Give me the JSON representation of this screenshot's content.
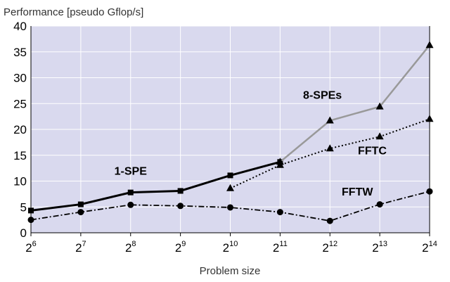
{
  "chart_data": {
    "type": "line",
    "title": "",
    "ylabel": "Performance [pseudo Gflop/s]",
    "xlabel": "Problem size",
    "ylim": [
      0,
      40
    ],
    "yticks": [
      0,
      5,
      10,
      15,
      20,
      25,
      30,
      35,
      40
    ],
    "x_base": "2",
    "x": [
      6,
      7,
      8,
      9,
      10,
      11,
      12,
      13,
      14
    ],
    "grid": true,
    "legend": "inline labels",
    "colors": {
      "plot_bg": "#d9d9ee",
      "grid": "#ffffff",
      "dark": "#000000",
      "gray": "#999999"
    },
    "series": [
      {
        "name": "1-SPE",
        "x": [
          6,
          7,
          8,
          9,
          10,
          11
        ],
        "values": [
          4.3,
          5.5,
          7.8,
          8.1,
          11.1,
          13.7
        ],
        "style": "solid-thick",
        "marker": "square",
        "color": "#000000"
      },
      {
        "name": "8-SPEs",
        "x": [
          11,
          12,
          13,
          14
        ],
        "values": [
          13.7,
          21.7,
          24.4,
          36.3
        ],
        "style": "solid",
        "marker": "triangle",
        "color": "#999999"
      },
      {
        "name": "FFTC",
        "x": [
          10,
          11,
          12,
          13,
          14
        ],
        "values": [
          8.6,
          13.1,
          16.3,
          18.6,
          22.0
        ],
        "style": "dotted",
        "marker": "triangle",
        "color": "#000000"
      },
      {
        "name": "FFTW",
        "x": [
          6,
          7,
          8,
          9,
          10,
          11,
          12,
          13,
          14
        ],
        "values": [
          2.5,
          4.0,
          5.4,
          5.2,
          4.9,
          4.0,
          2.3,
          5.5,
          8.0
        ],
        "style": "dashdot",
        "marker": "circle",
        "color": "#000000"
      }
    ]
  }
}
